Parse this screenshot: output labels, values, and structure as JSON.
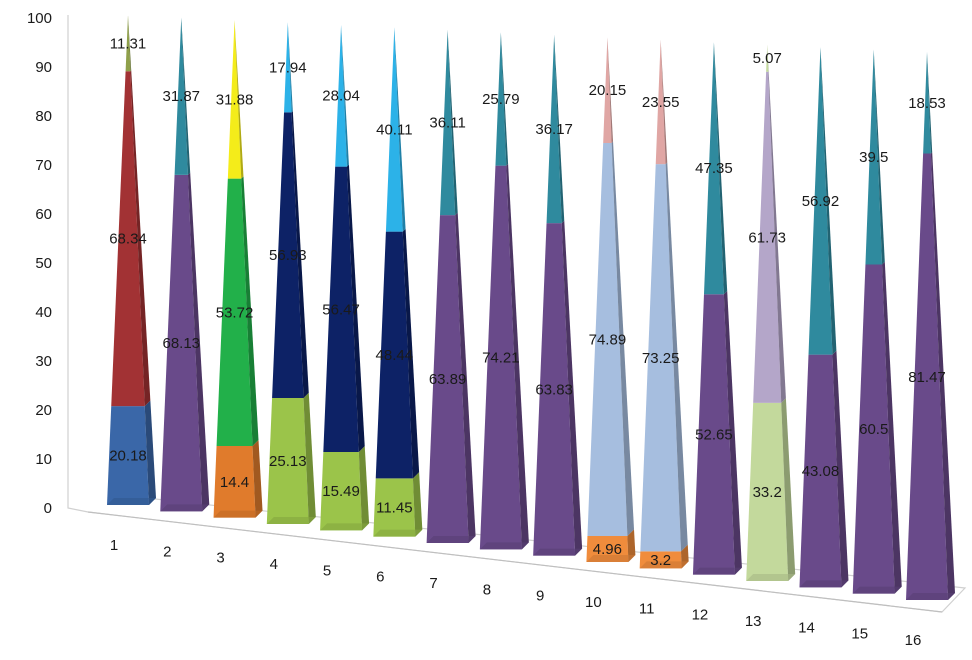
{
  "chart_data": {
    "type": "bar",
    "style": "3d-stacked-cones",
    "title": "",
    "xlabel": "",
    "ylabel": "",
    "ylim": [
      0,
      100
    ],
    "y_ticks": [
      "0",
      "10",
      "20",
      "30",
      "40",
      "50",
      "60",
      "70",
      "80",
      "90",
      "100"
    ],
    "grid": false,
    "legend": "none",
    "categories": [
      "1",
      "2",
      "3",
      "4",
      "5",
      "6",
      "7",
      "8",
      "9",
      "10",
      "11",
      "12",
      "13",
      "14",
      "15",
      "16"
    ],
    "stacks": [
      [
        {
          "value": 20.18,
          "label": "20.18",
          "color": "#3a67a8"
        },
        {
          "value": 68.34,
          "label": "68.34",
          "color": "#a23234"
        },
        {
          "value": 11.31,
          "label": "11.31",
          "color": "#8fa04a"
        }
      ],
      [
        {
          "value": 68.13,
          "label": "68.13",
          "color": "#694a8a"
        },
        {
          "value": 31.87,
          "label": "31.87",
          "color": "#2f8a9e"
        }
      ],
      [
        {
          "value": 14.4,
          "label": "14.4",
          "color": "#e07b2c"
        },
        {
          "value": 53.72,
          "label": "53.72",
          "color": "#22b04a"
        },
        {
          "value": 31.88,
          "label": "31.88",
          "color": "#f4ec1a"
        }
      ],
      [
        {
          "value": 25.13,
          "label": "25.13",
          "color": "#9bc44a"
        },
        {
          "value": 56.93,
          "label": "56.93",
          "color": "#0d2266"
        },
        {
          "value": 17.94,
          "label": "17.94",
          "color": "#2cb2e8"
        }
      ],
      [
        {
          "value": 15.49,
          "label": "15.49",
          "color": "#9bc44a"
        },
        {
          "value": 56.47,
          "label": "56.47",
          "color": "#0d2266"
        },
        {
          "value": 28.04,
          "label": "28.04",
          "color": "#2cb2e8"
        }
      ],
      [
        {
          "value": 11.45,
          "label": "11.45",
          "color": "#9bc44a"
        },
        {
          "value": 48.44,
          "label": "48.44",
          "color": "#0d2266"
        },
        {
          "value": 40.11,
          "label": "40.11",
          "color": "#2cb2e8"
        }
      ],
      [
        {
          "value": 63.89,
          "label": "63.89",
          "color": "#694a8a"
        },
        {
          "value": 36.11,
          "label": "36.11",
          "color": "#2f8a9e"
        }
      ],
      [
        {
          "value": 74.21,
          "label": "74.21",
          "color": "#694a8a"
        },
        {
          "value": 25.79,
          "label": "25.79",
          "color": "#2f8a9e"
        }
      ],
      [
        {
          "value": 63.83,
          "label": "63.83",
          "color": "#694a8a"
        },
        {
          "value": 36.17,
          "label": "36.17",
          "color": "#2f8a9e"
        }
      ],
      [
        {
          "value": 4.96,
          "label": "4.96",
          "color": "#f08c3c"
        },
        {
          "value": 74.89,
          "label": "74.89",
          "color": "#a6bedf"
        },
        {
          "value": 20.15,
          "label": "20.15",
          "color": "#e0a6a4"
        }
      ],
      [
        {
          "value": 3.2,
          "label": "3.2",
          "color": "#f08c3c"
        },
        {
          "value": 73.25,
          "label": "73.25",
          "color": "#a6bedf"
        },
        {
          "value": 23.55,
          "label": "23.55",
          "color": "#e0a6a4"
        }
      ],
      [
        {
          "value": 52.65,
          "label": "52.65",
          "color": "#694a8a"
        },
        {
          "value": 47.35,
          "label": "47.35",
          "color": "#2f8a9e"
        }
      ],
      [
        {
          "value": 33.2,
          "label": "33.2",
          "color": "#c3d99c"
        },
        {
          "value": 61.73,
          "label": "61.73",
          "color": "#b4a6c9"
        },
        {
          "value": 5.07,
          "label": "5.07",
          "color": "#c3d99c"
        }
      ],
      [
        {
          "value": 43.08,
          "label": "43.08",
          "color": "#694a8a"
        },
        {
          "value": 56.92,
          "label": "56.92",
          "color": "#2f8a9e"
        }
      ],
      [
        {
          "value": 60.5,
          "label": "60.5",
          "color": "#694a8a"
        },
        {
          "value": 39.5,
          "label": "39.5",
          "color": "#2f8a9e"
        }
      ],
      [
        {
          "value": 81.47,
          "label": "81.47",
          "color": "#694a8a"
        },
        {
          "value": 18.53,
          "label": "18.53",
          "color": "#2f8a9e"
        }
      ]
    ]
  }
}
